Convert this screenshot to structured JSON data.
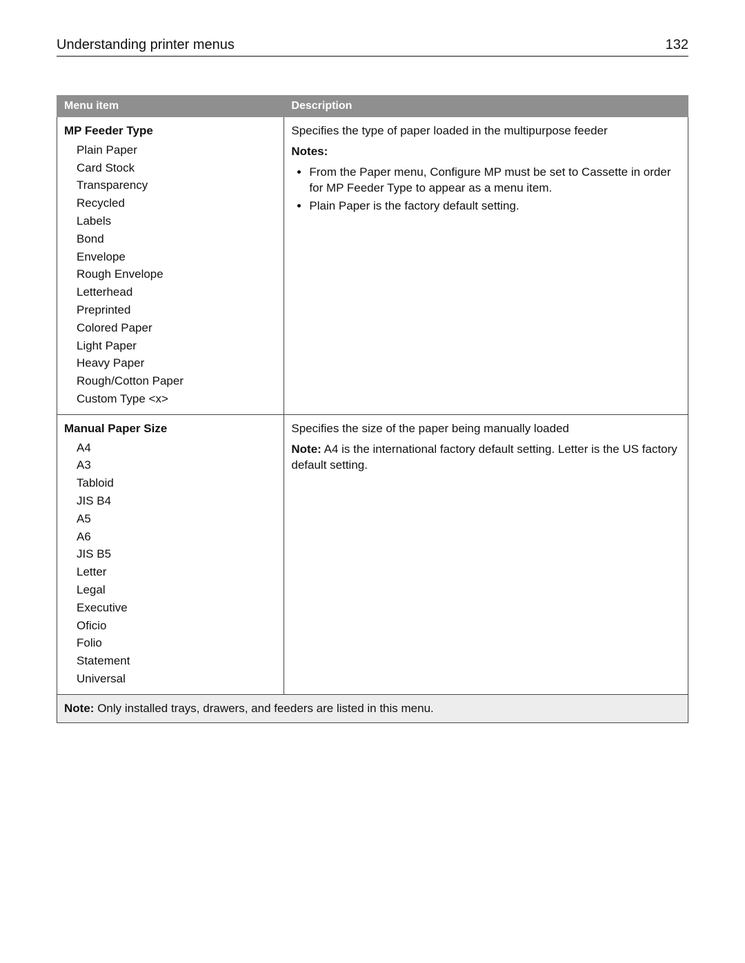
{
  "header": {
    "title": "Understanding printer menus",
    "page_number": "132"
  },
  "table": {
    "columns": [
      "Menu item",
      "Description"
    ],
    "column_widths": [
      "36%",
      "64%"
    ],
    "header_bg": "#8f8f8f",
    "header_fg": "#ffffff",
    "footer_bg": "#ededed",
    "rows": [
      {
        "menu_title": "MP Feeder Type",
        "options": [
          "Plain Paper",
          "Card Stock",
          "Transparency",
          "Recycled",
          "Labels",
          "Bond",
          "Envelope",
          "Rough Envelope",
          "Letterhead",
          "Preprinted",
          "Colored Paper",
          "Light Paper",
          "Heavy Paper",
          "Rough/Cotton Paper",
          "Custom Type <x>"
        ],
        "description": {
          "main": "Specifies the type of paper loaded in the multipurpose feeder",
          "notes_label": "Notes:",
          "notes": [
            "From the Paper menu, Configure MP must be set to Cassette in order for MP Feeder Type to appear as a menu item.",
            "Plain Paper is the factory default setting."
          ]
        }
      },
      {
        "menu_title": "Manual Paper Size",
        "options": [
          "A4",
          "A3",
          "Tabloid",
          "JIS B4",
          "A5",
          "A6",
          "JIS B5",
          "Letter",
          "Legal",
          "Executive",
          "Oficio",
          "Folio",
          "Statement",
          "Universal"
        ],
        "description": {
          "main": "Specifies the size of the paper being manually loaded",
          "note_inline_label": "Note:",
          "note_inline": "A4 is the international factory default setting. Letter is the US factory default setting."
        }
      }
    ],
    "footer_note_label": "Note:",
    "footer_note": "Only installed trays, drawers, and feeders are listed in this menu."
  }
}
